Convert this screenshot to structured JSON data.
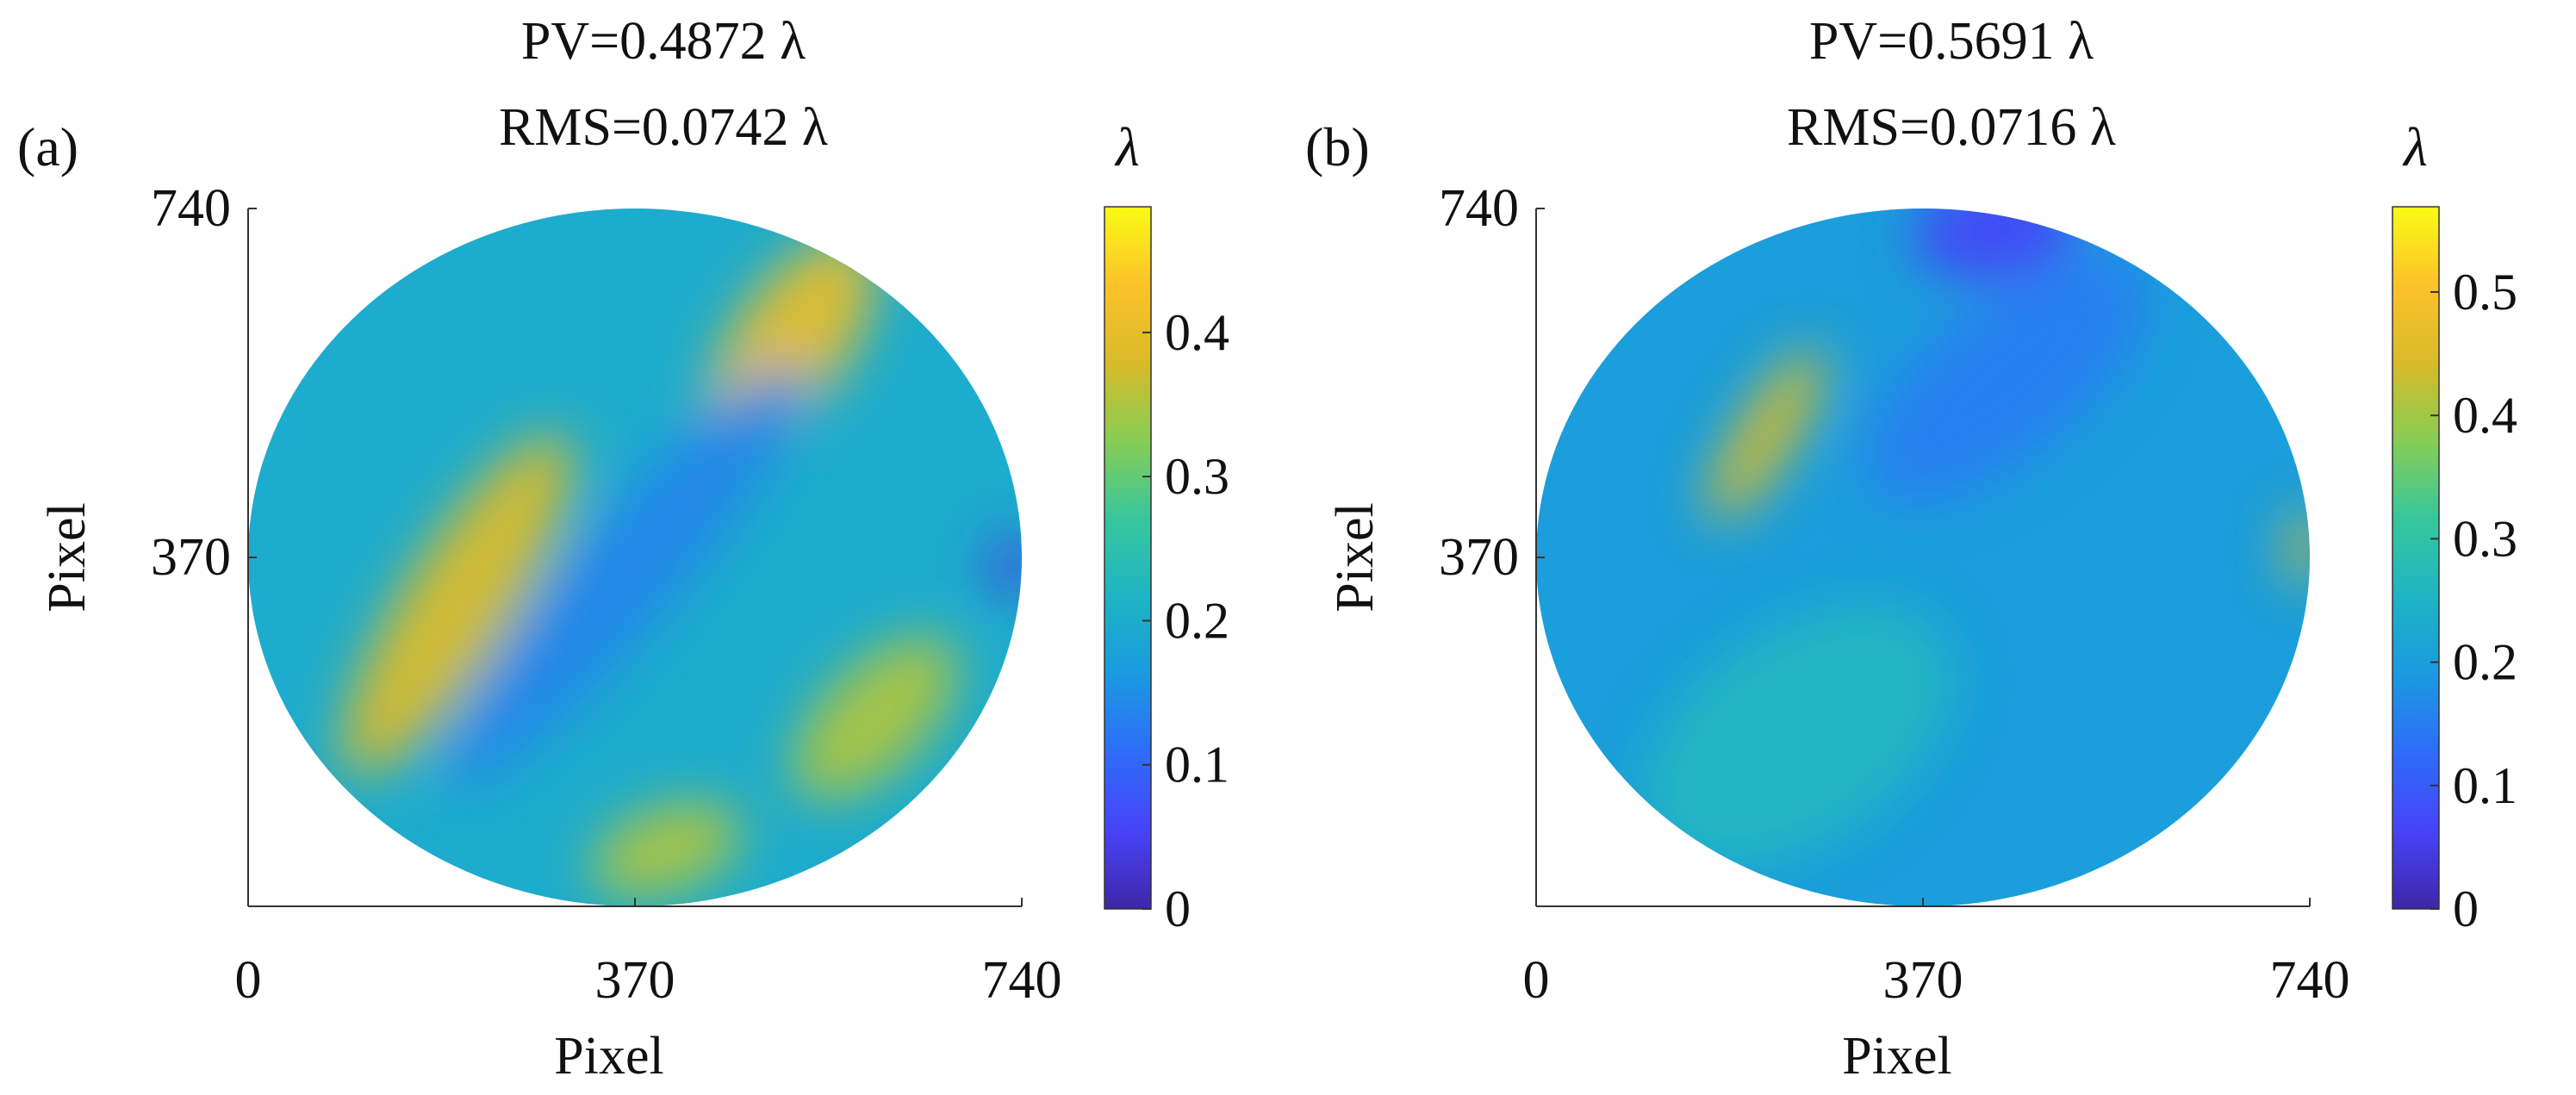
{
  "colormap": [
    "#3e26a8",
    "#4743f7",
    "#2e6cf9",
    "#1a9ae0",
    "#1eb4c4",
    "#37c79c",
    "#86cd54",
    "#d9bb2a",
    "#fdc22a",
    "#f9fb15"
  ],
  "chart_data": [
    {
      "type": "heatmap",
      "panel_label": "(a)",
      "title_lines": [
        "PV=0.4872 λ",
        "RMS=0.0742 λ"
      ],
      "xlabel": "Pixel",
      "ylabel": "Pixel",
      "xlim": [
        0,
        740
      ],
      "ylim": [
        0,
        740
      ],
      "xticks": [
        "0",
        "370",
        "740"
      ],
      "yticks": [
        "370",
        "740"
      ],
      "colorbar": {
        "label": "λ",
        "range": [
          0,
          0.4872
        ],
        "ticks": [
          0,
          0.1,
          0.2,
          0.3,
          0.4
        ],
        "tick_labels": [
          "0",
          "0.1",
          "0.2",
          "0.3",
          "0.4"
        ]
      },
      "aperture": "circular",
      "base_value": 0.2,
      "features": [
        {
          "desc": "upper band",
          "x": 520,
          "y": 600,
          "value": 0.4,
          "len": 230,
          "width": 60,
          "angle": -55
        },
        {
          "desc": "left diagonal band",
          "x": 200,
          "y": 320,
          "value": 0.38,
          "len": 380,
          "width": 58,
          "angle": -58
        },
        {
          "desc": "right lower band",
          "x": 600,
          "y": 200,
          "value": 0.35,
          "len": 200,
          "width": 55,
          "angle": -45
        },
        {
          "desc": "bottom band",
          "x": 400,
          "y": 60,
          "value": 0.35,
          "len": 150,
          "width": 45,
          "angle": -20
        },
        {
          "desc": "central blue trough",
          "x": 360,
          "y": 350,
          "value": 0.14,
          "len": 520,
          "width": 55,
          "angle": -50
        },
        {
          "desc": "right edge low",
          "x": 730,
          "y": 360,
          "value": 0.04,
          "len": 60,
          "width": 22,
          "angle": -90
        }
      ]
    },
    {
      "type": "heatmap",
      "panel_label": "(b)",
      "title_lines": [
        "PV=0.5691 λ",
        "RMS=0.0716 λ"
      ],
      "xlabel": "Pixel",
      "ylabel": "Pixel",
      "xlim": [
        0,
        740
      ],
      "ylim": [
        0,
        740
      ],
      "xticks": [
        "0",
        "370",
        "740"
      ],
      "yticks": [
        "370",
        "740"
      ],
      "colorbar": {
        "label": "λ",
        "range": [
          0,
          0.5691
        ],
        "ticks": [
          0,
          0.1,
          0.2,
          0.3,
          0.4,
          0.5
        ],
        "tick_labels": [
          "0",
          "0.1",
          "0.2",
          "0.3",
          "0.4",
          "0.5"
        ]
      },
      "aperture": "circular",
      "base_value": 0.2,
      "features": [
        {
          "desc": "upper-left streak",
          "x": 220,
          "y": 500,
          "value": 0.44,
          "len": 190,
          "width": 30,
          "angle": -58
        },
        {
          "desc": "top dark patch",
          "x": 440,
          "y": 720,
          "value": 0.07,
          "len": 160,
          "width": 55,
          "angle": -10
        },
        {
          "desc": "right edge high",
          "x": 735,
          "y": 380,
          "value": 0.44,
          "len": 70,
          "width": 18,
          "angle": -90
        },
        {
          "desc": "lower-left lighter wash",
          "x": 250,
          "y": 180,
          "value": 0.26,
          "len": 330,
          "width": 110,
          "angle": -35
        },
        {
          "desc": "upper blue region",
          "x": 450,
          "y": 560,
          "value": 0.15,
          "len": 330,
          "width": 80,
          "angle": -40
        }
      ]
    }
  ]
}
